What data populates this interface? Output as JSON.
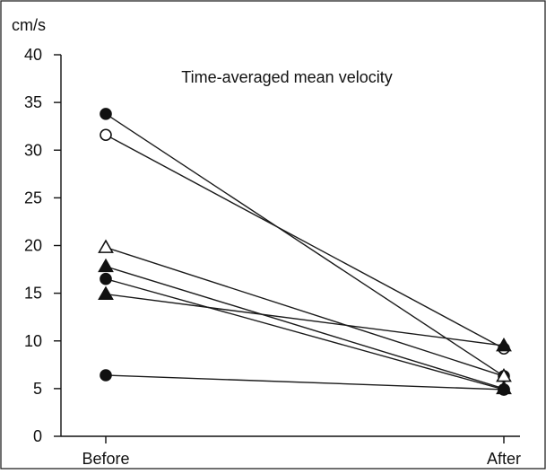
{
  "chart_data": {
    "type": "line",
    "title": "Time-averaged mean velocity",
    "ylabel": "cm/s",
    "xlabel": "",
    "categories": [
      "Before",
      "After"
    ],
    "ylim": [
      0,
      40
    ],
    "yticks": [
      0,
      5,
      10,
      15,
      20,
      25,
      30,
      35,
      40
    ],
    "grid": false,
    "legend": "none",
    "series": [
      {
        "marker": "filled-circle",
        "values": [
          33.8,
          6.3
        ]
      },
      {
        "marker": "open-circle",
        "values": [
          31.6,
          9.2
        ]
      },
      {
        "marker": "open-triangle",
        "values": [
          19.8,
          6.3
        ]
      },
      {
        "marker": "filled-triangle",
        "values": [
          17.8,
          5.0
        ]
      },
      {
        "marker": "filled-circle",
        "values": [
          16.5,
          4.9
        ]
      },
      {
        "marker": "filled-triangle",
        "values": [
          14.9,
          9.5
        ]
      },
      {
        "marker": "filled-circle",
        "values": [
          6.4,
          4.9
        ]
      }
    ]
  },
  "colors": {
    "ink": "#111111",
    "background": "#ffffff"
  }
}
